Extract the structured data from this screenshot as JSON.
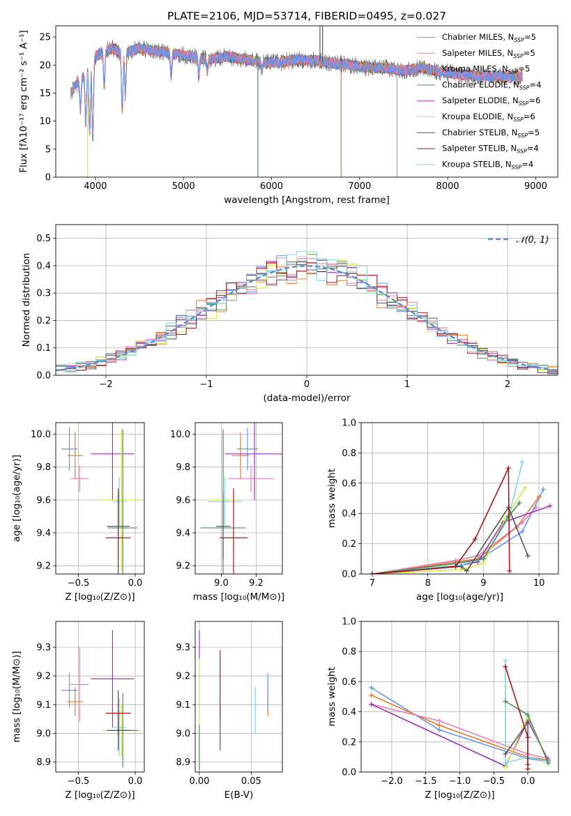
{
  "colors": {
    "Chabrier MILES": "#6495ed",
    "Salpeter MILES": "#e67fb4",
    "Kroupa MILES": "#e8782a",
    "Chabrier ELODIE": "#4f8a5e",
    "Salpeter ELODIE": "#a030b8",
    "Kroupa ELODIE": "#d4e84a",
    "Chabrier STELIB": "#555555",
    "Salpeter STELIB": "#a8161a",
    "Kroupa STELIB": "#7dd8e8"
  },
  "chart_data": [
    {
      "id": "spectrum",
      "type": "line",
      "title": "PLATE=2106, MJD=53714, FIBERID=0495, z=0.027",
      "xlabel": "wavelength [Angstrom, rest frame]",
      "ylabel": "Flux [fλ10⁻¹⁷ erg cm⁻² s⁻¹ A⁻¹]",
      "xlim": [
        3550,
        9250
      ],
      "ylim": [
        0,
        27
      ],
      "xticks": [
        4000,
        5000,
        6000,
        7000,
        8000,
        9000
      ],
      "yticks": [
        0,
        5,
        10,
        15,
        20,
        25
      ],
      "legend_position": "top-right",
      "legend": [
        {
          "label": "Chabrier MILES, N",
          "sub": "SSP",
          "suffix": "=5"
        },
        {
          "label": "Salpeter MILES, N",
          "sub": "SSP",
          "suffix": "=5"
        },
        {
          "label": "Kroupa MILES, N",
          "sub": "SSP",
          "suffix": "=5"
        },
        {
          "label": "Chabrier ELODIE, N",
          "sub": "SSP",
          "suffix": "=4"
        },
        {
          "label": "Salpeter ELODIE, N",
          "sub": "SSP",
          "suffix": "=6"
        },
        {
          "label": "Kroupa ELODIE, N",
          "sub": "SSP",
          "suffix": "=6"
        },
        {
          "label": "Chabrier STELIB, N",
          "sub": "SSP",
          "suffix": "=5"
        },
        {
          "label": "Salpeter STELIB, N",
          "sub": "SSP",
          "suffix": "=4"
        },
        {
          "label": "Kroupa STELIB, N",
          "sub": "SSP",
          "suffix": "=4"
        }
      ],
      "continuum": {
        "x": [
          3720,
          3800,
          3900,
          3970,
          4000,
          4100,
          4200,
          4300,
          4400,
          4500,
          4700,
          4900,
          5100,
          5300,
          5500,
          5700,
          5900,
          6100,
          6300,
          6500,
          6700,
          6900,
          7100,
          7300,
          7500,
          7700,
          7900,
          8100,
          8300,
          8500,
          8700,
          8850
        ],
        "y": [
          15,
          17,
          18.5,
          20,
          21.5,
          22.5,
          23,
          22,
          22.5,
          23,
          22.5,
          22,
          21.5,
          21,
          21.5,
          21,
          20.5,
          20.5,
          21,
          20.8,
          20.3,
          20,
          19.5,
          19.5,
          19,
          19.5,
          18.8,
          18.5,
          18,
          18,
          18,
          18
        ]
      },
      "dips": [
        {
          "x": 3830,
          "y": 12
        },
        {
          "x": 3890,
          "y": 10
        },
        {
          "x": 3935,
          "y": 8
        },
        {
          "x": 3970,
          "y": 7
        },
        {
          "x": 4100,
          "y": 16
        },
        {
          "x": 4305,
          "y": 12
        },
        {
          "x": 4340,
          "y": 15
        },
        {
          "x": 4860,
          "y": 18
        },
        {
          "x": 5175,
          "y": 18
        },
        {
          "x": 5270,
          "y": 19
        },
        {
          "x": 5890,
          "y": 19
        }
      ],
      "spikes": [
        {
          "x": 5845,
          "y": 0,
          "series": "Chabrier ELODIE"
        },
        {
          "x": 6790,
          "y": 0,
          "series": "Kroupa MILES"
        },
        {
          "x": 7425,
          "y": 0,
          "series": "Salpeter MILES"
        },
        {
          "x": 3912,
          "y": 0,
          "series": "Kroupa ELODIE"
        },
        {
          "x": 6550,
          "y": 27,
          "series": "Chabrier STELIB"
        },
        {
          "x": 6580,
          "y": 27,
          "series": "Chabrier STELIB"
        }
      ]
    },
    {
      "id": "residuals",
      "type": "step",
      "xlabel": "(data-model)/error",
      "ylabel": "Normed distribution",
      "xlim": [
        -2.5,
        2.5
      ],
      "ylim": [
        0,
        0.55
      ],
      "xticks": [
        -2,
        -1,
        0,
        1,
        2
      ],
      "yticks": [
        0.0,
        0.1,
        0.2,
        0.3,
        0.4,
        0.5
      ],
      "legend_position": "top-right",
      "gaussian_label": "𝒩(0, 1)",
      "bins": 50
    },
    {
      "id": "age_vs_Z",
      "type": "errorbar",
      "xlabel": "Z [log₁₀(Z/Z⊙)]",
      "ylabel": "age  [log₁₀(age/yr)]",
      "xlim": [
        -0.7,
        0.08
      ],
      "ylim": [
        9.15,
        10.07
      ],
      "xticks": [
        -0.5,
        0.0
      ],
      "yticks": [
        9.2,
        9.4,
        9.6,
        9.8,
        10.0
      ],
      "points": [
        {
          "series": "Chabrier MILES",
          "x": -0.58,
          "xerr": 0.07,
          "y": 9.91,
          "yerr": 0.13
        },
        {
          "series": "Kroupa MILES",
          "x": -0.53,
          "xerr": 0.07,
          "y": 9.87,
          "yerr": 0.14
        },
        {
          "series": "Salpeter MILES",
          "x": -0.49,
          "xerr": 0.08,
          "y": 9.73,
          "yerr": 0.08
        },
        {
          "series": "Salpeter ELODIE",
          "x": -0.2,
          "xerr": 0.19,
          "y": 9.88,
          "yerr": 0.28
        },
        {
          "series": "Kroupa ELODIE",
          "x": -0.12,
          "xerr": 0.17,
          "y": 9.6,
          "yerr": 0.43
        },
        {
          "series": "Kroupa STELIB",
          "x": -0.14,
          "xerr": 0.06,
          "y": 9.59,
          "yerr": 0.15
        },
        {
          "series": "Chabrier ELODIE",
          "x": -0.11,
          "xerr": 0.13,
          "y": 9.43,
          "yerr": 0.6
        },
        {
          "series": "Chabrier STELIB",
          "x": -0.15,
          "xerr": 0.1,
          "y": 9.44,
          "yerr": 0.2
        },
        {
          "series": "Salpeter STELIB",
          "x": -0.15,
          "xerr": 0.11,
          "y": 9.37,
          "yerr": 0.3
        }
      ]
    },
    {
      "id": "age_vs_mass",
      "type": "errorbar",
      "xlabel": "mass [log₁₀(M/M⊙)]",
      "ylabel": "",
      "xlim": [
        8.85,
        9.35
      ],
      "ylim": [
        9.15,
        10.07
      ],
      "xticks": [
        9.0,
        9.2
      ],
      "yticks": [
        9.2,
        9.4,
        9.6,
        9.8,
        10.0
      ],
      "points": [
        {
          "series": "Chabrier MILES",
          "x": 9.15,
          "xerr": 0.06,
          "y": 9.91,
          "yerr": 0.13
        },
        {
          "series": "Kroupa MILES",
          "x": 9.11,
          "xerr": 0.05,
          "y": 9.87,
          "yerr": 0.14
        },
        {
          "series": "Salpeter MILES",
          "x": 9.17,
          "xerr": 0.13,
          "y": 9.73,
          "yerr": 0.08
        },
        {
          "series": "Salpeter ELODIE",
          "x": 9.19,
          "xerr": 0.17,
          "y": 9.88,
          "yerr": 0.28
        },
        {
          "series": "Kroupa ELODIE",
          "x": 9.01,
          "xerr": 0.09,
          "y": 9.6,
          "yerr": 0.43
        },
        {
          "series": "Kroupa STELIB",
          "x": 9.02,
          "xerr": 0.1,
          "y": 9.59,
          "yerr": 0.15
        },
        {
          "series": "Chabrier ELODIE",
          "x": 9.01,
          "xerr": 0.13,
          "y": 9.43,
          "yerr": 0.6
        },
        {
          "series": "Chabrier STELIB",
          "x": 9.01,
          "xerr": 0.04,
          "y": 9.44,
          "yerr": 0.2
        },
        {
          "series": "Salpeter STELIB",
          "x": 9.07,
          "xerr": 0.08,
          "y": 9.37,
          "yerr": 0.3
        }
      ]
    },
    {
      "id": "weight_vs_age",
      "type": "line",
      "xlabel": "age  [log₁₀(age/yr)]",
      "ylabel": "mass weight",
      "xlim": [
        6.8,
        10.35
      ],
      "ylim": [
        0,
        1.0
      ],
      "xticks": [
        7,
        8,
        9,
        10
      ],
      "yticks": [
        0.0,
        0.2,
        0.4,
        0.6,
        0.8,
        1.0
      ],
      "series": [
        {
          "name": "Chabrier MILES",
          "x": [
            7.0,
            8.5,
            8.9,
            9.7,
            10.08
          ],
          "y": [
            0.0,
            0.07,
            0.09,
            0.28,
            0.56
          ]
        },
        {
          "name": "Kroupa MILES",
          "x": [
            7.0,
            8.5,
            8.9,
            9.6,
            10.0
          ],
          "y": [
            0.0,
            0.08,
            0.1,
            0.31,
            0.51
          ]
        },
        {
          "name": "Salpeter MILES",
          "x": [
            7.0,
            8.5,
            8.9,
            9.7,
            9.95
          ],
          "y": [
            0.0,
            0.09,
            0.12,
            0.34,
            0.44
          ]
        },
        {
          "name": "Salpeter ELODIE",
          "x": [
            7.0,
            8.5,
            8.9,
            9.35,
            10.2
          ],
          "y": [
            0.0,
            0.05,
            0.08,
            0.34,
            0.45
          ]
        },
        {
          "name": "Kroupa ELODIE",
          "x": [
            7.0,
            8.6,
            9.0,
            9.4,
            9.75
          ],
          "y": [
            0.0,
            0.03,
            0.07,
            0.37,
            0.57
          ]
        },
        {
          "name": "Kroupa STELIB",
          "x": [
            7.0,
            8.6,
            9.0,
            9.45,
            9.7
          ],
          "y": [
            0.0,
            0.06,
            0.1,
            0.37,
            0.74
          ]
        },
        {
          "name": "Chabrier ELODIE",
          "x": [
            7.0,
            8.5,
            9.0,
            9.45,
            9.65
          ],
          "y": [
            0.0,
            0.07,
            0.1,
            0.38,
            0.47
          ]
        },
        {
          "name": "Chabrier STELIB",
          "x": [
            7.0,
            8.6,
            8.7,
            9.45,
            9.8
          ],
          "y": [
            0.0,
            0.05,
            0.02,
            0.44,
            0.12
          ]
        },
        {
          "name": "Salpeter STELIB",
          "x": [
            7.0,
            8.5,
            8.85,
            9.45,
            9.47
          ],
          "y": [
            0.0,
            0.05,
            0.23,
            0.7,
            0.02
          ]
        }
      ]
    },
    {
      "id": "mass_vs_Z",
      "type": "errorbar",
      "xlabel": "Z [log₁₀(Z/Z⊙)]",
      "ylabel": "mass [log₁₀(M/M⊙)]",
      "xlim": [
        -0.7,
        0.08
      ],
      "ylim": [
        8.865,
        9.39
      ],
      "xticks": [
        -0.5,
        0.0
      ],
      "yticks": [
        8.9,
        9.0,
        9.1,
        9.2,
        9.3
      ],
      "points": [
        {
          "series": "Chabrier MILES",
          "x": -0.58,
          "xerr": 0.07,
          "y": 9.15,
          "yerr": 0.06
        },
        {
          "series": "Kroupa MILES",
          "x": -0.53,
          "xerr": 0.07,
          "y": 9.11,
          "yerr": 0.05
        },
        {
          "series": "Salpeter MILES",
          "x": -0.49,
          "xerr": 0.08,
          "y": 9.17,
          "yerr": 0.13
        },
        {
          "series": "Salpeter ELODIE",
          "x": -0.2,
          "xerr": 0.19,
          "y": 9.19,
          "yerr": 0.17
        },
        {
          "series": "Kroupa ELODIE",
          "x": -0.12,
          "xerr": 0.17,
          "y": 9.01,
          "yerr": 0.09
        },
        {
          "series": "Kroupa STELIB",
          "x": -0.14,
          "xerr": 0.06,
          "y": 9.02,
          "yerr": 0.1
        },
        {
          "series": "Chabrier ELODIE",
          "x": -0.11,
          "xerr": 0.13,
          "y": 9.01,
          "yerr": 0.13
        },
        {
          "series": "Chabrier STELIB",
          "x": -0.15,
          "xerr": 0.1,
          "y": 9.01,
          "yerr": 0.07
        },
        {
          "series": "Salpeter STELIB",
          "x": -0.15,
          "xerr": 0.11,
          "y": 9.07,
          "yerr": 0.08
        }
      ]
    },
    {
      "id": "mass_vs_ebv",
      "type": "errorbar",
      "xlabel": "E(B-V)",
      "ylabel": "",
      "xlim": [
        -0.004,
        0.08
      ],
      "ylim": [
        8.865,
        9.39
      ],
      "xticks": [
        0.0,
        0.05
      ],
      "yticks": [
        8.9,
        9.0,
        9.1,
        9.2,
        9.3
      ],
      "points": [
        {
          "series": "Salpeter ELODIE",
          "x": 0.0,
          "xerr": 0,
          "y": 9.31,
          "yerr": 0.05
        },
        {
          "series": "Kroupa ELODIE",
          "x": 0.0,
          "xerr": 0,
          "y": 9.06,
          "yerr": 0.2
        },
        {
          "series": "Chabrier ELODIE",
          "x": 0.0,
          "xerr": 0,
          "y": 8.95,
          "yerr": 0.08
        },
        {
          "series": "Salpeter STELIB",
          "x": 0.02,
          "xerr": 0,
          "y": 9.17,
          "yerr": 0.12
        },
        {
          "series": "Chabrier STELIB",
          "x": 0.02,
          "xerr": 0,
          "y": 9.02,
          "yerr": 0.08
        },
        {
          "series": "Kroupa STELIB",
          "x": 0.054,
          "xerr": 0,
          "y": 9.08,
          "yerr": 0.08
        },
        {
          "series": "Kroupa MILES",
          "x": 0.066,
          "xerr": 0,
          "y": 9.11,
          "yerr": 0.05
        },
        {
          "series": "Chabrier MILES",
          "x": 0.066,
          "xerr": 0,
          "y": 9.15,
          "yerr": 0.06
        },
        {
          "series": "Salpeter MILES",
          "x": 0.08,
          "xerr": 0,
          "y": 9.21,
          "yerr": 0.09
        }
      ]
    },
    {
      "id": "weight_vs_Z",
      "type": "line",
      "xlabel": "Z [log₁₀(Z/Z⊙)]",
      "ylabel": "mass weight",
      "xlim": [
        -2.45,
        0.45
      ],
      "ylim": [
        0,
        1.0
      ],
      "xticks": [
        -2.0,
        -1.5,
        -1.0,
        -0.5,
        0.0
      ],
      "yticks": [
        0.0,
        0.2,
        0.4,
        0.6,
        0.8,
        1.0
      ],
      "series": [
        {
          "name": "Chabrier MILES",
          "x": [
            -2.3,
            -1.3,
            0.0,
            0.3
          ],
          "y": [
            0.56,
            0.28,
            0.09,
            0.07
          ]
        },
        {
          "name": "Kroupa MILES",
          "x": [
            -2.3,
            -1.3,
            0.0,
            0.3
          ],
          "y": [
            0.51,
            0.31,
            0.1,
            0.08
          ]
        },
        {
          "name": "Salpeter MILES",
          "x": [
            -2.3,
            -1.3,
            0.0,
            0.3
          ],
          "y": [
            0.45,
            0.34,
            0.12,
            0.09
          ]
        },
        {
          "name": "Salpeter ELODIE",
          "x": [
            -2.3,
            -0.33,
            0.0,
            0.3
          ],
          "y": [
            0.45,
            0.04,
            0.34,
            0.08
          ]
        },
        {
          "name": "Kroupa ELODIE",
          "x": [
            -0.33,
            -0.33,
            0.0,
            0.3
          ],
          "y": [
            0.57,
            0.03,
            0.37,
            0.06
          ]
        },
        {
          "name": "Kroupa STELIB",
          "x": [
            -0.33,
            -0.33,
            0.0,
            0.3
          ],
          "y": [
            0.74,
            0.06,
            0.1,
            0.07
          ]
        },
        {
          "name": "Chabrier ELODIE",
          "x": [
            -0.33,
            0.0,
            0.3
          ],
          "y": [
            0.47,
            0.38,
            0.06
          ]
        },
        {
          "name": "Chabrier STELIB",
          "x": [
            -0.33,
            0.0,
            0.0
          ],
          "y": [
            0.12,
            0.33,
            0.05
          ]
        },
        {
          "name": "Salpeter STELIB",
          "x": [
            -0.33,
            0.0,
            0.0
          ],
          "y": [
            0.7,
            0.23,
            0.02
          ]
        }
      ]
    }
  ]
}
